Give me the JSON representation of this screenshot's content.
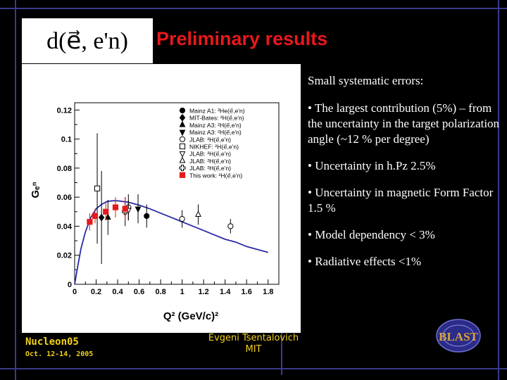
{
  "slide": {
    "formula": "d(e⃗, e'n)",
    "title": "Preliminary results",
    "bullets": [
      "Small systematic errors:",
      "• The largest contribution (5%) – from the uncertainty in the target polarization angle (~12 % per degree)",
      "• Uncertainty in h.Pz  2.5%",
      "• Uncertainty in magnetic Form Factor 1.5 %",
      "• Model dependency < 3%",
      "• Radiative effects <1%"
    ],
    "footer": {
      "conference": "Nucleon05",
      "dates": "Oct. 12-14, 2005",
      "author": "Evgeni Tsentalovich",
      "institution": "MIT"
    },
    "logo_text": "BLAST",
    "colors": {
      "title": "#e8181b",
      "footer": "#f2d11c",
      "curve": "#2a2aa8",
      "this_work": "#e41a1a"
    }
  },
  "chart_data": {
    "type": "scatter",
    "xlabel": "Q² (GeV/c)²",
    "ylabel": "Gₑⁿ",
    "xlim": [
      0,
      1.9
    ],
    "ylim": [
      0,
      0.125
    ],
    "xticks": [
      "0",
      "0.2",
      "0.4",
      "0.6",
      "0.8",
      "1",
      "1.2",
      "1.4",
      "1.6",
      "1.8"
    ],
    "xtick_values": [
      0,
      0.2,
      0.4,
      0.6,
      0.8,
      1,
      1.2,
      1.4,
      1.6,
      1.8
    ],
    "yticks": [
      "0",
      "0.02",
      "0.04",
      "0.06",
      "0.08",
      "0.1",
      "0.12"
    ],
    "ytick_values": [
      0,
      0.02,
      0.04,
      0.06,
      0.08,
      0.1,
      0.12
    ],
    "legend_position": "top-right",
    "legend": [
      {
        "marker": "circle-filled",
        "label": "Mainz A1: ³He(e⃗,e'n)"
      },
      {
        "marker": "diamond-filled",
        "label": "MIT-Bates: ²H(e⃗,e'n)"
      },
      {
        "marker": "triangle-up-filled",
        "label": "Mainz A3: ²H(e⃗,e'n)"
      },
      {
        "marker": "triangle-down-filled",
        "label": "Mainz A3: ²H(e⃗,e'n)"
      },
      {
        "marker": "circle-open",
        "label": "JLAB: ²H(e⃗,e'n)"
      },
      {
        "marker": "square-open",
        "label": "NIKHEF: ²H(e⃗,e'n)"
      },
      {
        "marker": "triangle-down-open",
        "label": "JLAB: ²H(e⃗,e'n)"
      },
      {
        "marker": "triangle-up-open",
        "label": "JLAB: ²H(e⃗,e'n)"
      },
      {
        "marker": "cross-open",
        "label": "JLAB: ²H(e⃗,e'n)"
      },
      {
        "marker": "square-filled-red",
        "label": "This work: ²H(e⃗,e'n)"
      }
    ],
    "series": [
      {
        "name": "Mainz A1: ³He(e⃗,e'n)",
        "marker": "circle-filled",
        "points": [
          {
            "x": 0.67,
            "y": 0.047,
            "err": 0.008
          }
        ]
      },
      {
        "name": "MIT-Bates: ²H(e⃗,e'n)",
        "marker": "diamond-filled",
        "points": [
          {
            "x": 0.25,
            "y": 0.046,
            "err": 0.032
          }
        ]
      },
      {
        "name": "Mainz A3: ²H(e⃗,e'n)",
        "marker": "triangle-up-filled",
        "points": [
          {
            "x": 0.31,
            "y": 0.046,
            "err": 0.012
          }
        ]
      },
      {
        "name": "Mainz A3: ²H(e⃗,e'n)",
        "marker": "triangle-down-filled",
        "points": [
          {
            "x": 0.59,
            "y": 0.052,
            "err": 0.01
          }
        ]
      },
      {
        "name": "JLAB: ²H(e⃗,e'n)",
        "marker": "circle-open",
        "points": [
          {
            "x": 0.5,
            "y": 0.053,
            "err": 0.009
          },
          {
            "x": 1.0,
            "y": 0.045,
            "err": 0.006
          },
          {
            "x": 1.45,
            "y": 0.04,
            "err": 0.005
          }
        ]
      },
      {
        "name": "NIKHEF: ²H(e⃗,e'n)",
        "marker": "square-open",
        "points": [
          {
            "x": 0.21,
            "y": 0.066,
            "err": 0.038
          }
        ]
      },
      {
        "name": "JLAB: ²H(e⃗,e'n)",
        "marker": "triangle-down-open",
        "points": [
          {
            "x": 0.5,
            "y": 0.051,
            "err": 0.007
          }
        ]
      },
      {
        "name": "JLAB: ²H(e⃗,e'n)",
        "marker": "triangle-up-open",
        "points": [
          {
            "x": 1.15,
            "y": 0.048,
            "err": 0.007
          }
        ]
      },
      {
        "name": "JLAB: ²H(e⃗,e'n)",
        "marker": "cross-open",
        "points": [
          {
            "x": 0.47,
            "y": 0.05,
            "err": 0.01
          }
        ]
      },
      {
        "name": "This work: ²H(e⃗,e'n)",
        "marker": "square-filled-red",
        "points": [
          {
            "x": 0.14,
            "y": 0.043,
            "err": 0.006
          },
          {
            "x": 0.19,
            "y": 0.047,
            "err": 0.005
          },
          {
            "x": 0.29,
            "y": 0.05,
            "err": 0.006
          },
          {
            "x": 0.38,
            "y": 0.053,
            "err": 0.007
          },
          {
            "x": 0.47,
            "y": 0.052,
            "err": 0.008
          }
        ]
      }
    ],
    "curve": {
      "style": "solid",
      "color": "#2a2aa8",
      "x": [
        0,
        0.03,
        0.06,
        0.1,
        0.15,
        0.2,
        0.25,
        0.3,
        0.35,
        0.4,
        0.5,
        0.6,
        0.7,
        0.8,
        0.9,
        1.0,
        1.1,
        1.2,
        1.3,
        1.4,
        1.5,
        1.6,
        1.7,
        1.8
      ],
      "y": [
        0,
        0.013,
        0.025,
        0.036,
        0.046,
        0.052,
        0.055,
        0.057,
        0.0575,
        0.0575,
        0.0565,
        0.0545,
        0.052,
        0.049,
        0.046,
        0.043,
        0.04,
        0.037,
        0.034,
        0.031,
        0.029,
        0.026,
        0.024,
        0.022
      ]
    }
  }
}
